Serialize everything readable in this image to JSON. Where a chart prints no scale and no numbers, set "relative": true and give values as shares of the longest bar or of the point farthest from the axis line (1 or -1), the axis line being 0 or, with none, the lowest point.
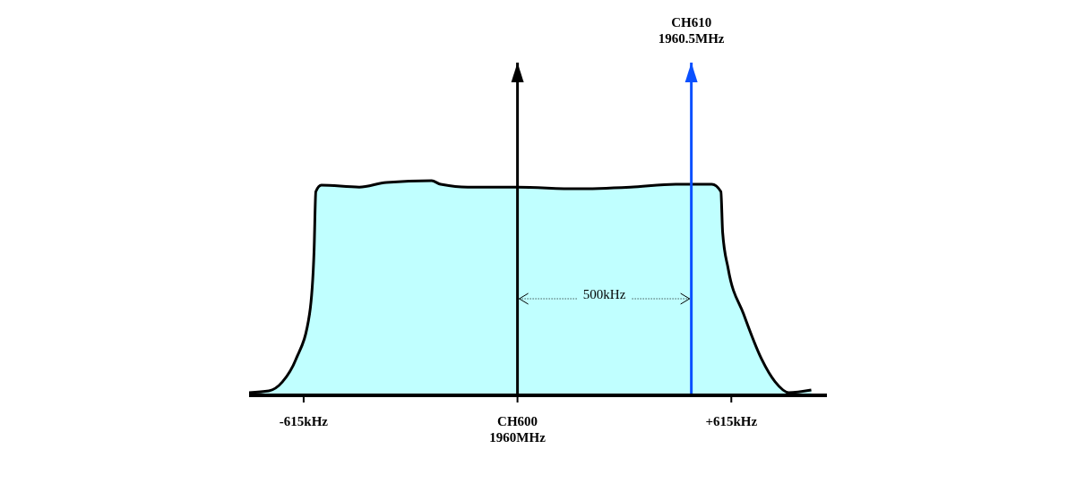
{
  "chart_data": {
    "type": "area",
    "relative": true,
    "color": "#c0ffff",
    "x": [
      -772,
      -715,
      -676,
      -637,
      -598,
      -585,
      -580,
      -564,
      -455,
      -377,
      -247,
      -221,
      -143,
      0,
      169,
      325,
      455,
      559,
      585,
      590,
      606,
      650,
      702,
      741,
      780,
      845
    ],
    "values": [
      0.013,
      0.021,
      0.063,
      0.169,
      0.38,
      0.675,
      0.949,
      0.979,
      0.97,
      0.992,
      1,
      0.983,
      0.97,
      0.97,
      0.962,
      0.97,
      0.983,
      0.983,
      0.949,
      0.76,
      0.59,
      0.38,
      0.169,
      0.063,
      0.013,
      0.025
    ],
    "xlim": [
      -772,
      890
    ],
    "xticks": [
      {
        "value": -615,
        "label": "-615kHz"
      },
      {
        "value": 0,
        "label": "CH600\n1960MHz"
      },
      {
        "value": 615,
        "label": "+615kHz"
      }
    ],
    "ref_lines": [
      {
        "axis": "x",
        "value": 0,
        "label": null,
        "color": "#000000"
      },
      {
        "axis": "x",
        "value": 500,
        "label": "CH610\n1960.5MHz",
        "color": "#0a50ff"
      }
    ],
    "annotations": [
      "500kHz"
    ]
  }
}
